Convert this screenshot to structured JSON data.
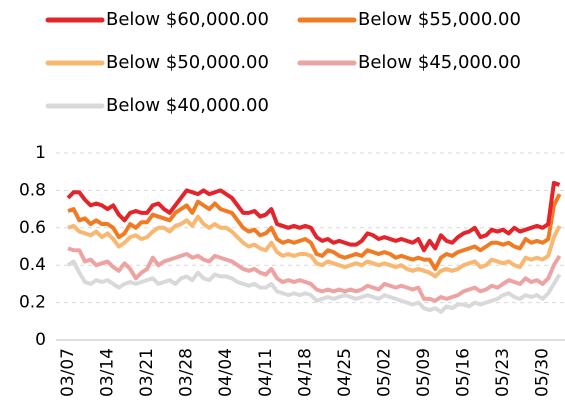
{
  "chart_data": {
    "type": "line",
    "categories": [
      "03/07",
      null,
      null,
      null,
      null,
      null,
      null,
      "03/14",
      null,
      null,
      null,
      null,
      null,
      null,
      "03/21",
      null,
      null,
      null,
      null,
      null,
      null,
      "03/28",
      null,
      null,
      null,
      null,
      null,
      null,
      "04/04",
      null,
      null,
      null,
      null,
      null,
      null,
      "04/11",
      null,
      null,
      null,
      null,
      null,
      null,
      "04/18",
      null,
      null,
      null,
      null,
      null,
      null,
      "04/25",
      null,
      null,
      null,
      null,
      null,
      null,
      "05/02",
      null,
      null,
      null,
      null,
      null,
      null,
      "05/09",
      null,
      null,
      null,
      null,
      null,
      null,
      "05/16",
      null,
      null,
      null,
      null,
      null,
      null,
      "05/23",
      null,
      null,
      null,
      null,
      null,
      null,
      "05/30",
      null,
      null,
      null
    ],
    "series": [
      {
        "name": "Below $60,000.00",
        "color": "#e3242b",
        "values": [
          0.76,
          0.79,
          0.79,
          0.75,
          0.72,
          0.73,
          0.72,
          0.7,
          0.72,
          0.67,
          0.64,
          0.68,
          0.69,
          0.68,
          0.68,
          0.72,
          0.73,
          0.7,
          0.68,
          0.72,
          0.76,
          0.8,
          0.79,
          0.78,
          0.8,
          0.78,
          0.79,
          0.8,
          0.78,
          0.76,
          0.72,
          0.68,
          0.68,
          0.69,
          0.66,
          0.67,
          0.7,
          0.62,
          0.61,
          0.6,
          0.61,
          0.6,
          0.61,
          0.6,
          0.55,
          0.53,
          0.54,
          0.52,
          0.53,
          0.52,
          0.51,
          0.51,
          0.53,
          0.57,
          0.56,
          0.54,
          0.55,
          0.54,
          0.53,
          0.54,
          0.53,
          0.52,
          0.54,
          0.48,
          0.53,
          0.49,
          0.56,
          0.53,
          0.52,
          0.55,
          0.57,
          0.58,
          0.6,
          0.55,
          0.56,
          0.59,
          0.58,
          0.59,
          0.57,
          0.6,
          0.58,
          0.59,
          0.6,
          0.61,
          0.6,
          0.62,
          0.84,
          0.83
        ]
      },
      {
        "name": "Below $55,000.00",
        "color": "#f07b22",
        "values": [
          0.69,
          0.7,
          0.64,
          0.65,
          0.62,
          0.64,
          0.62,
          0.62,
          0.6,
          0.55,
          0.57,
          0.62,
          0.6,
          0.63,
          0.63,
          0.67,
          0.66,
          0.65,
          0.64,
          0.68,
          0.7,
          0.72,
          0.68,
          0.74,
          0.72,
          0.7,
          0.73,
          0.7,
          0.69,
          0.68,
          0.64,
          0.6,
          0.58,
          0.59,
          0.56,
          0.57,
          0.6,
          0.54,
          0.52,
          0.53,
          0.52,
          0.53,
          0.54,
          0.52,
          0.46,
          0.45,
          0.48,
          0.47,
          0.45,
          0.44,
          0.45,
          0.46,
          0.45,
          0.48,
          0.47,
          0.46,
          0.47,
          0.46,
          0.44,
          0.45,
          0.44,
          0.43,
          0.44,
          0.43,
          0.43,
          0.38,
          0.44,
          0.46,
          0.45,
          0.47,
          0.48,
          0.49,
          0.5,
          0.48,
          0.5,
          0.52,
          0.52,
          0.51,
          0.52,
          0.5,
          0.49,
          0.54,
          0.52,
          0.53,
          0.52,
          0.54,
          0.72,
          0.78
        ]
      },
      {
        "name": "Below $50,000.00",
        "color": "#f9b872",
        "values": [
          0.6,
          0.61,
          0.58,
          0.57,
          0.56,
          0.58,
          0.55,
          0.57,
          0.54,
          0.5,
          0.52,
          0.55,
          0.56,
          0.54,
          0.55,
          0.58,
          0.6,
          0.6,
          0.58,
          0.61,
          0.62,
          0.64,
          0.61,
          0.66,
          0.62,
          0.6,
          0.62,
          0.6,
          0.6,
          0.58,
          0.55,
          0.52,
          0.5,
          0.51,
          0.49,
          0.48,
          0.52,
          0.47,
          0.45,
          0.46,
          0.45,
          0.46,
          0.46,
          0.45,
          0.41,
          0.4,
          0.42,
          0.41,
          0.4,
          0.39,
          0.4,
          0.41,
          0.4,
          0.42,
          0.41,
          0.4,
          0.41,
          0.4,
          0.39,
          0.4,
          0.38,
          0.37,
          0.38,
          0.37,
          0.36,
          0.34,
          0.37,
          0.38,
          0.37,
          0.38,
          0.4,
          0.41,
          0.42,
          0.39,
          0.4,
          0.43,
          0.42,
          0.41,
          0.42,
          0.4,
          0.39,
          0.44,
          0.43,
          0.44,
          0.43,
          0.45,
          0.55,
          0.61
        ]
      },
      {
        "name": "Below $45,000.00",
        "color": "#eea3a3",
        "values": [
          0.49,
          0.48,
          0.48,
          0.42,
          0.43,
          0.4,
          0.41,
          0.42,
          0.39,
          0.37,
          0.41,
          0.38,
          0.33,
          0.36,
          0.38,
          0.44,
          0.4,
          0.42,
          0.43,
          0.44,
          0.45,
          0.46,
          0.44,
          0.45,
          0.43,
          0.42,
          0.45,
          0.44,
          0.43,
          0.42,
          0.4,
          0.38,
          0.37,
          0.38,
          0.36,
          0.35,
          0.38,
          0.33,
          0.31,
          0.32,
          0.31,
          0.32,
          0.31,
          0.3,
          0.27,
          0.26,
          0.27,
          0.26,
          0.27,
          0.26,
          0.27,
          0.26,
          0.27,
          0.29,
          0.28,
          0.27,
          0.3,
          0.29,
          0.28,
          0.29,
          0.28,
          0.27,
          0.28,
          0.22,
          0.22,
          0.21,
          0.23,
          0.22,
          0.23,
          0.24,
          0.26,
          0.27,
          0.28,
          0.26,
          0.27,
          0.29,
          0.28,
          0.3,
          0.32,
          0.31,
          0.3,
          0.33,
          0.31,
          0.32,
          0.3,
          0.33,
          0.4,
          0.45
        ]
      },
      {
        "name": "Below $40,000.00",
        "color": "#d9d9d9",
        "values": [
          0.4,
          0.42,
          0.36,
          0.31,
          0.3,
          0.32,
          0.31,
          0.32,
          0.3,
          0.28,
          0.3,
          0.31,
          0.3,
          0.31,
          0.32,
          0.33,
          0.3,
          0.31,
          0.32,
          0.3,
          0.33,
          0.34,
          0.32,
          0.36,
          0.33,
          0.32,
          0.35,
          0.34,
          0.34,
          0.33,
          0.31,
          0.3,
          0.29,
          0.3,
          0.28,
          0.28,
          0.3,
          0.26,
          0.25,
          0.24,
          0.25,
          0.24,
          0.25,
          0.24,
          0.21,
          0.22,
          0.23,
          0.22,
          0.23,
          0.24,
          0.23,
          0.22,
          0.23,
          0.24,
          0.23,
          0.22,
          0.24,
          0.23,
          0.22,
          0.21,
          0.2,
          0.19,
          0.2,
          0.17,
          0.16,
          0.17,
          0.15,
          0.18,
          0.17,
          0.19,
          0.19,
          0.18,
          0.2,
          0.19,
          0.2,
          0.21,
          0.22,
          0.24,
          0.25,
          0.23,
          0.22,
          0.24,
          0.23,
          0.24,
          0.22,
          0.25,
          0.3,
          0.35
        ]
      }
    ],
    "ylim": [
      0,
      1
    ],
    "yticks": [
      0,
      0.2,
      0.4,
      0.6,
      0.8,
      1
    ],
    "grid": true
  }
}
